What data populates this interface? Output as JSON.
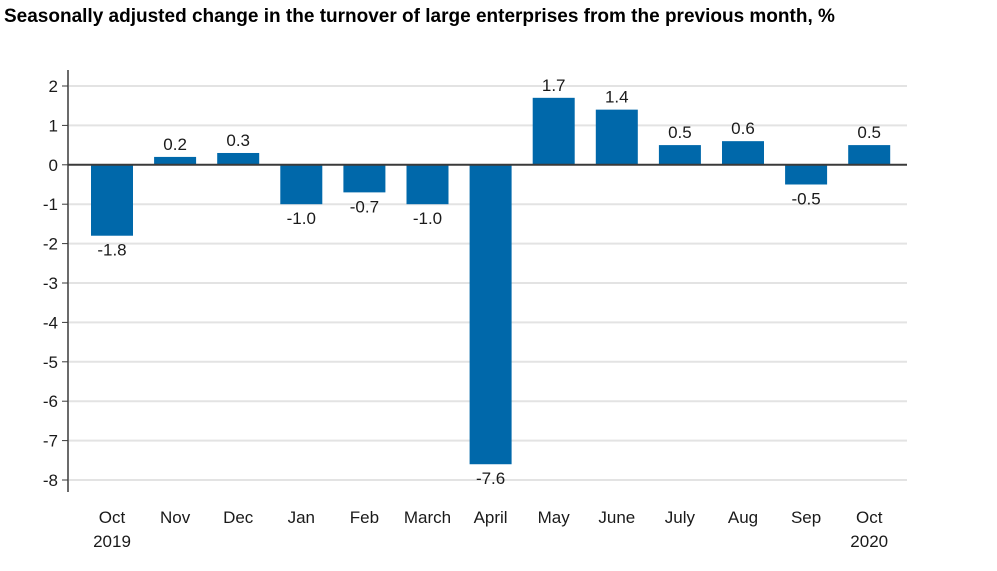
{
  "chart_data": {
    "type": "bar",
    "title": "Seasonally adjusted change in the turnover of large enterprises from the previous month, %",
    "categories": [
      [
        "Oct",
        "2019"
      ],
      [
        "Nov"
      ],
      [
        "Dec"
      ],
      [
        "Jan"
      ],
      [
        "Feb"
      ],
      [
        "March"
      ],
      [
        "April"
      ],
      [
        "May"
      ],
      [
        "June"
      ],
      [
        "July"
      ],
      [
        "Aug"
      ],
      [
        "Sep"
      ],
      [
        "Oct",
        "2020"
      ]
    ],
    "values": [
      -1.8,
      0.2,
      0.3,
      -1.0,
      -0.7,
      -1.0,
      -7.6,
      1.7,
      1.4,
      0.5,
      0.6,
      -0.5,
      0.5
    ],
    "data_labels": [
      "-1.8",
      "0.2",
      "0.3",
      "-1.0",
      "-0.7",
      "-1.0",
      "-7.6",
      "1.7",
      "1.4",
      "0.5",
      "0.6",
      "-0.5",
      "0.5"
    ],
    "yticks": [
      2,
      1,
      0,
      -1,
      -2,
      -3,
      -4,
      -5,
      -6,
      -7,
      -8
    ],
    "ylim": [
      -8,
      2
    ],
    "xlabel": "",
    "ylabel": "",
    "grid": true,
    "legend": "none",
    "bar_color": "#0068aa",
    "grid_color": "#e3e3e3",
    "axis_color": "#3a3a3a"
  }
}
